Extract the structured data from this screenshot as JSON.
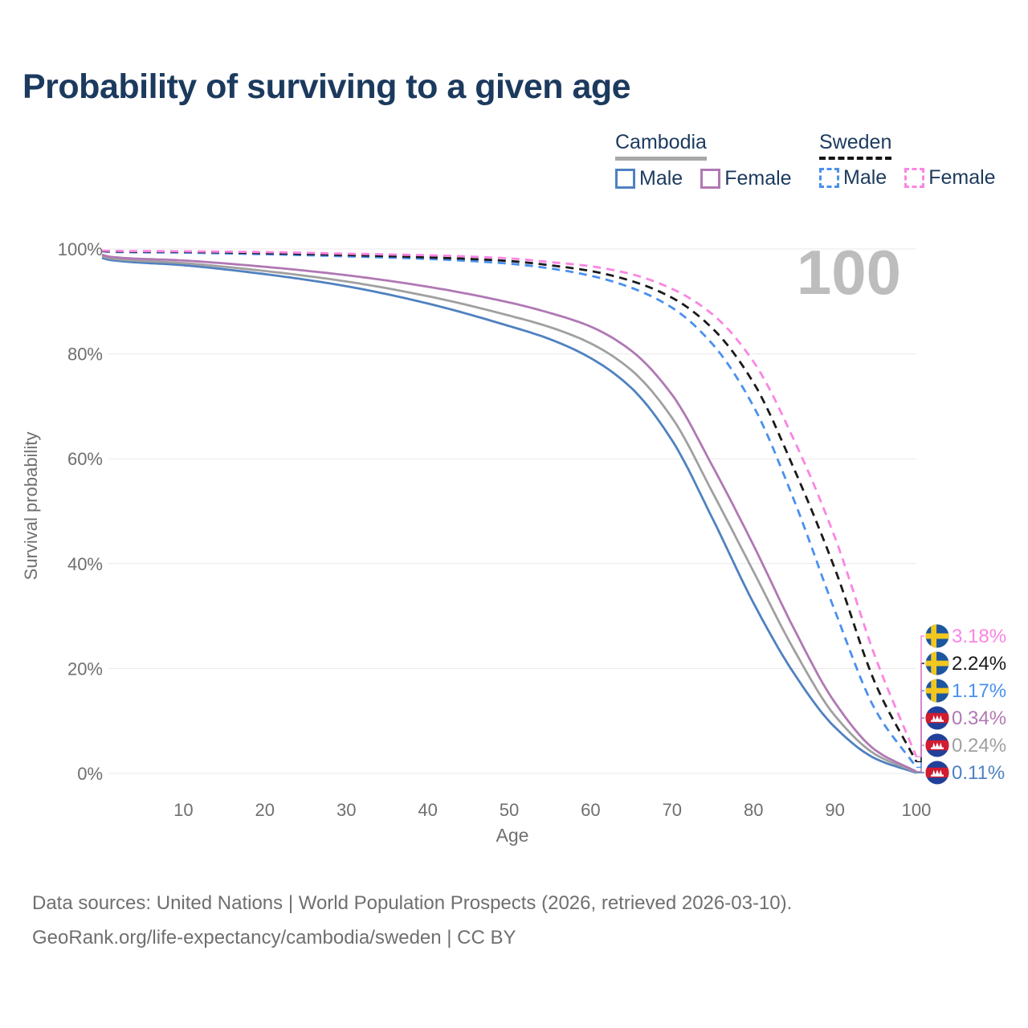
{
  "page": {
    "title": "Probability of surviving to a given age",
    "watermark": "100",
    "footer_line1": "Data sources: United Nations | World Population Prospects (2026, retrieved 2026-03-10).",
    "footer_line2": "GeoRank.org/life-expectancy/cambodia/sweden | CC BY"
  },
  "legend": {
    "groups": [
      {
        "label": "Cambodia",
        "underline": {
          "color": "#a8a8a8",
          "style": "solid"
        },
        "items": [
          {
            "label": "Male",
            "color": "#4f81c0",
            "dashed": false
          },
          {
            "label": "Female",
            "color": "#b078b4",
            "dashed": false
          }
        ]
      },
      {
        "label": "Sweden",
        "underline": {
          "color": "#141414",
          "style": "dashed"
        },
        "items": [
          {
            "label": "Male",
            "color": "#4a90ee",
            "dashed": true
          },
          {
            "label": "Female",
            "color": "#fa85e2",
            "dashed": true
          }
        ]
      }
    ]
  },
  "chart_data": {
    "type": "line",
    "title": "Probability of surviving to a given age",
    "xlabel": "Age",
    "ylabel": "Survival probability",
    "xlim": [
      0,
      100
    ],
    "ylim": [
      0,
      100
    ],
    "grid": "horizontal-only",
    "legend_position": "top-right",
    "hover_age_label": "100",
    "x_ticks": [
      10,
      20,
      30,
      40,
      50,
      60,
      70,
      80,
      90,
      100
    ],
    "y_ticks": [
      {
        "value": 0,
        "label": "0%"
      },
      {
        "value": 20,
        "label": "20%"
      },
      {
        "value": 40,
        "label": "40%"
      },
      {
        "value": 60,
        "label": "60%"
      },
      {
        "value": 80,
        "label": "80%"
      },
      {
        "value": 100,
        "label": "100%"
      }
    ],
    "x": [
      0,
      1,
      10,
      20,
      30,
      40,
      50,
      55,
      60,
      65,
      70,
      75,
      80,
      85,
      90,
      95,
      100
    ],
    "series": [
      {
        "id": "cambodia-male",
        "country": "Cambodia",
        "sex": "Male",
        "color": "#4f81c0",
        "dashed": false,
        "flag": "cambodia-flag-icon",
        "end_label": "0.11%",
        "end_value": 0.11,
        "values": [
          98.3,
          97.9,
          96.9,
          95.2,
          92.9,
          89.6,
          85.3,
          82.8,
          79.2,
          73.5,
          63.5,
          48.5,
          32.5,
          19.0,
          8.8,
          2.8,
          0.11
        ]
      },
      {
        "id": "cambodia-both-sexes",
        "country": "Cambodia",
        "sex": "Both sexes",
        "color": "#a0a0a0",
        "dashed": false,
        "flag": "cambodia-flag-icon",
        "end_label": "0.24%",
        "end_value": 0.24,
        "values": [
          98.6,
          98.2,
          97.3,
          95.8,
          93.8,
          91.0,
          87.3,
          85.1,
          82.0,
          76.9,
          67.8,
          53.5,
          38.5,
          23.5,
          11.0,
          3.6,
          0.24
        ]
      },
      {
        "id": "cambodia-female",
        "country": "Cambodia",
        "sex": "Female",
        "color": "#b078b4",
        "dashed": false,
        "flag": "cambodia-flag-icon",
        "end_label": "0.34%",
        "end_value": 0.34,
        "values": [
          98.9,
          98.5,
          97.8,
          96.6,
          95.0,
          92.8,
          89.8,
          87.8,
          85.2,
          80.6,
          72.2,
          58.5,
          43.5,
          27.5,
          13.5,
          4.4,
          0.34
        ]
      },
      {
        "id": "sweden-male",
        "country": "Sweden",
        "sex": "Male",
        "color": "#4a90ee",
        "dashed": true,
        "flag": "sweden-flag-icon",
        "end_label": "1.17%",
        "end_value": 1.17,
        "values": [
          99.55,
          99.45,
          99.3,
          99.0,
          98.6,
          98.1,
          97.2,
          96.3,
          94.9,
          92.6,
          88.8,
          81.8,
          70.0,
          52.0,
          31.0,
          12.0,
          1.17
        ]
      },
      {
        "id": "sweden-both-sexes",
        "country": "Sweden",
        "sex": "Both sexes",
        "color": "#1a1a1a",
        "dashed": true,
        "flag": "sweden-flag-icon",
        "end_label": "2.24%",
        "end_value": 2.24,
        "values": [
          99.65,
          99.55,
          99.45,
          99.2,
          98.85,
          98.4,
          97.7,
          96.9,
          95.8,
          93.9,
          90.7,
          84.8,
          74.5,
          58.0,
          39.0,
          17.0,
          2.24
        ]
      },
      {
        "id": "sweden-female",
        "country": "Sweden",
        "sex": "Female",
        "color": "#fa85e2",
        "dashed": true,
        "flag": "sweden-flag-icon",
        "end_label": "3.18%",
        "end_value": 3.18,
        "values": [
          99.7,
          99.65,
          99.55,
          99.4,
          99.1,
          98.8,
          98.2,
          97.5,
          96.7,
          95.2,
          92.4,
          87.5,
          78.5,
          63.5,
          45.0,
          22.0,
          3.18
        ]
      }
    ]
  }
}
